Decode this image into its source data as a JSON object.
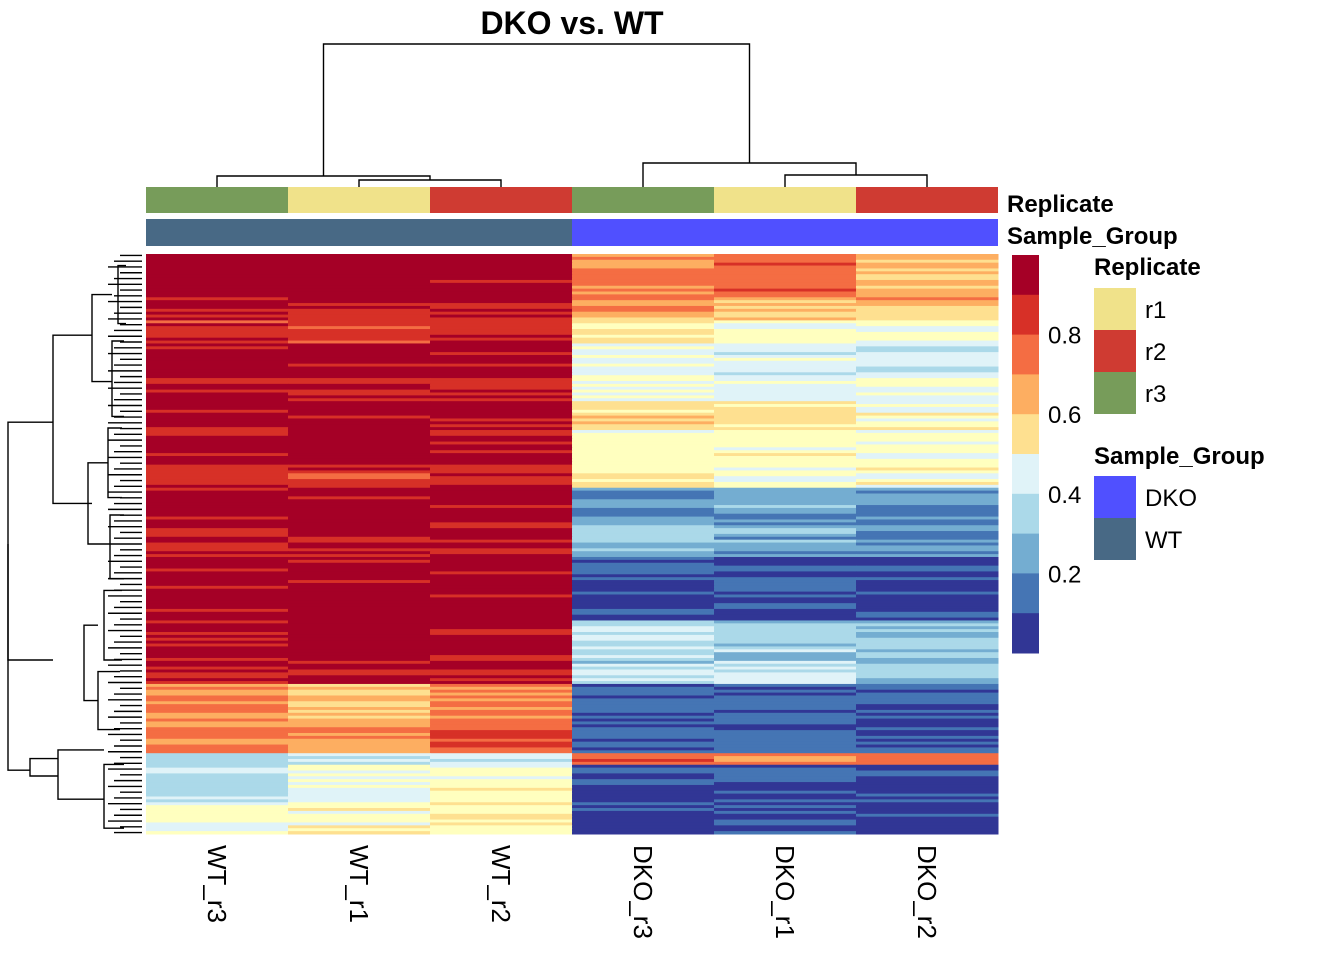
{
  "chart_data": {
    "type": "heatmap",
    "title": "DKO vs. WT",
    "columns": [
      "WT_r3",
      "WT_r1",
      "WT_r2",
      "DKO_r3",
      "DKO_r1",
      "DKO_r2"
    ],
    "column_annotations": {
      "Replicate": [
        "r3",
        "r1",
        "r2",
        "r3",
        "r1",
        "r2"
      ],
      "Sample_Group": [
        "WT",
        "WT",
        "WT",
        "DKO",
        "DKO",
        "DKO"
      ]
    },
    "annotation_track_labels": [
      "Replicate",
      "Sample_Group"
    ],
    "color_scale": {
      "breaks_label": [
        "0.2",
        "0.4",
        "0.6",
        "0.8"
      ],
      "range": [
        0.0,
        1.0
      ],
      "palette": [
        "#313695",
        "#4575b4",
        "#74add1",
        "#abd9e9",
        "#e0f3f8",
        "#ffffbf",
        "#fee090",
        "#fdae61",
        "#f46d43",
        "#d73027",
        "#a50026"
      ]
    },
    "row_blocks": [
      {
        "rows": 16,
        "values": [
          0.97,
          0.97,
          0.97,
          0.74,
          0.78,
          0.66
        ]
      },
      {
        "rows": 7,
        "values": [
          0.93,
          0.93,
          0.92,
          0.69,
          0.67,
          0.62
        ]
      },
      {
        "rows": 8,
        "values": [
          0.88,
          0.84,
          0.87,
          0.55,
          0.48,
          0.43
        ]
      },
      {
        "rows": 12,
        "values": [
          0.97,
          0.97,
          0.97,
          0.44,
          0.4,
          0.38
        ]
      },
      {
        "rows": 8,
        "values": [
          0.93,
          0.9,
          0.92,
          0.46,
          0.43,
          0.44
        ]
      },
      {
        "rows": 10,
        "values": [
          0.97,
          0.97,
          0.97,
          0.61,
          0.55,
          0.51
        ]
      },
      {
        "rows": 12,
        "values": [
          0.96,
          0.97,
          0.96,
          0.5,
          0.52,
          0.47
        ]
      },
      {
        "rows": 8,
        "values": [
          0.89,
          0.86,
          0.89,
          0.54,
          0.48,
          0.52
        ]
      },
      {
        "rows": 12,
        "values": [
          0.96,
          0.97,
          0.96,
          0.19,
          0.22,
          0.17
        ]
      },
      {
        "rows": 12,
        "values": [
          0.91,
          0.93,
          0.91,
          0.27,
          0.23,
          0.21
        ]
      },
      {
        "rows": 12,
        "values": [
          0.96,
          0.96,
          0.95,
          0.07,
          0.1,
          0.08
        ]
      },
      {
        "rows": 10,
        "values": [
          0.96,
          0.97,
          0.96,
          0.05,
          0.08,
          0.06
        ]
      },
      {
        "rows": 14,
        "values": [
          0.95,
          0.96,
          0.95,
          0.35,
          0.3,
          0.29
        ]
      },
      {
        "rows": 8,
        "values": [
          0.92,
          0.93,
          0.93,
          0.33,
          0.35,
          0.27
        ]
      },
      {
        "rows": 12,
        "values": [
          0.71,
          0.66,
          0.74,
          0.13,
          0.1,
          0.12
        ]
      },
      {
        "rows": 12,
        "values": [
          0.78,
          0.72,
          0.8,
          0.12,
          0.11,
          0.1
        ]
      },
      {
        "rows": 4,
        "values": [
          0.28,
          0.35,
          0.36,
          0.84,
          0.72,
          0.78
        ]
      },
      {
        "rows": 14,
        "values": [
          0.36,
          0.44,
          0.5,
          0.07,
          0.09,
          0.06
        ]
      },
      {
        "rows": 10,
        "values": [
          0.46,
          0.51,
          0.55,
          0.05,
          0.08,
          0.05
        ]
      }
    ]
  },
  "legends": {
    "replicate": {
      "title": "Replicate",
      "items": [
        {
          "label": "r1",
          "color": "#f0e28a"
        },
        {
          "label": "r2",
          "color": "#cf3b32"
        },
        {
          "label": "r3",
          "color": "#779c5a"
        }
      ]
    },
    "sample_group": {
      "title": "Sample_Group",
      "items": [
        {
          "label": "DKO",
          "color": "#5050ff"
        },
        {
          "label": "WT",
          "color": "#486985"
        }
      ]
    }
  }
}
